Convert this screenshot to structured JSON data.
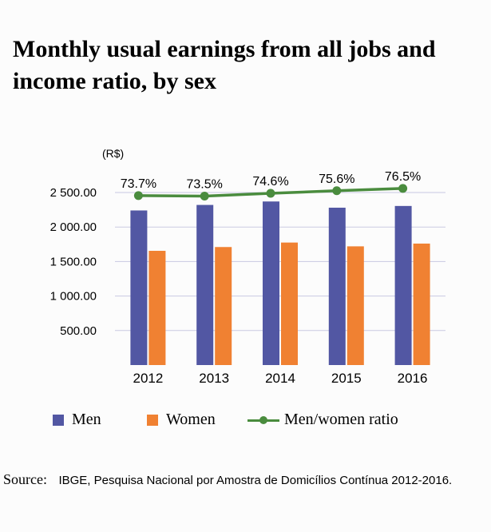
{
  "title": "Monthly usual earnings from all jobs and income ratio, by sex",
  "unit_label": "(R$)",
  "colors": {
    "men": "#5257a3",
    "women": "#f08132",
    "ratio": "#4a8c3e",
    "grid": "#c9c9e2"
  },
  "legend": {
    "men": "Men",
    "women": "Women",
    "ratio": "Men/women ratio"
  },
  "source": {
    "label": "Source:",
    "text": "IBGE, Pesquisa Nacional por Amostra de Domicílios Contínua 2012-2016."
  },
  "chart_data": {
    "type": "bar",
    "categories": [
      "2012",
      "2013",
      "2014",
      "2015",
      "2016"
    ],
    "series": [
      {
        "name": "Men",
        "values": [
          2240,
          2320,
          2370,
          2280,
          2305
        ]
      },
      {
        "name": "Women",
        "values": [
          1655,
          1710,
          1775,
          1720,
          1760
        ]
      }
    ],
    "line_series": {
      "name": "Men/women ratio",
      "values": [
        73.7,
        73.5,
        74.6,
        75.6,
        76.5
      ],
      "labels": [
        "73.7%",
        "73.5%",
        "74.6%",
        "75.6%",
        "76.5%"
      ]
    },
    "yticks": [
      500,
      1000,
      1500,
      2000,
      2500
    ],
    "ytick_labels": [
      "500.00",
      "1 000.00",
      "1 500.00",
      "2 000.00",
      "2 500.00"
    ],
    "ylim": [
      0,
      2500
    ],
    "grid": true,
    "legend_position": "bottom"
  }
}
